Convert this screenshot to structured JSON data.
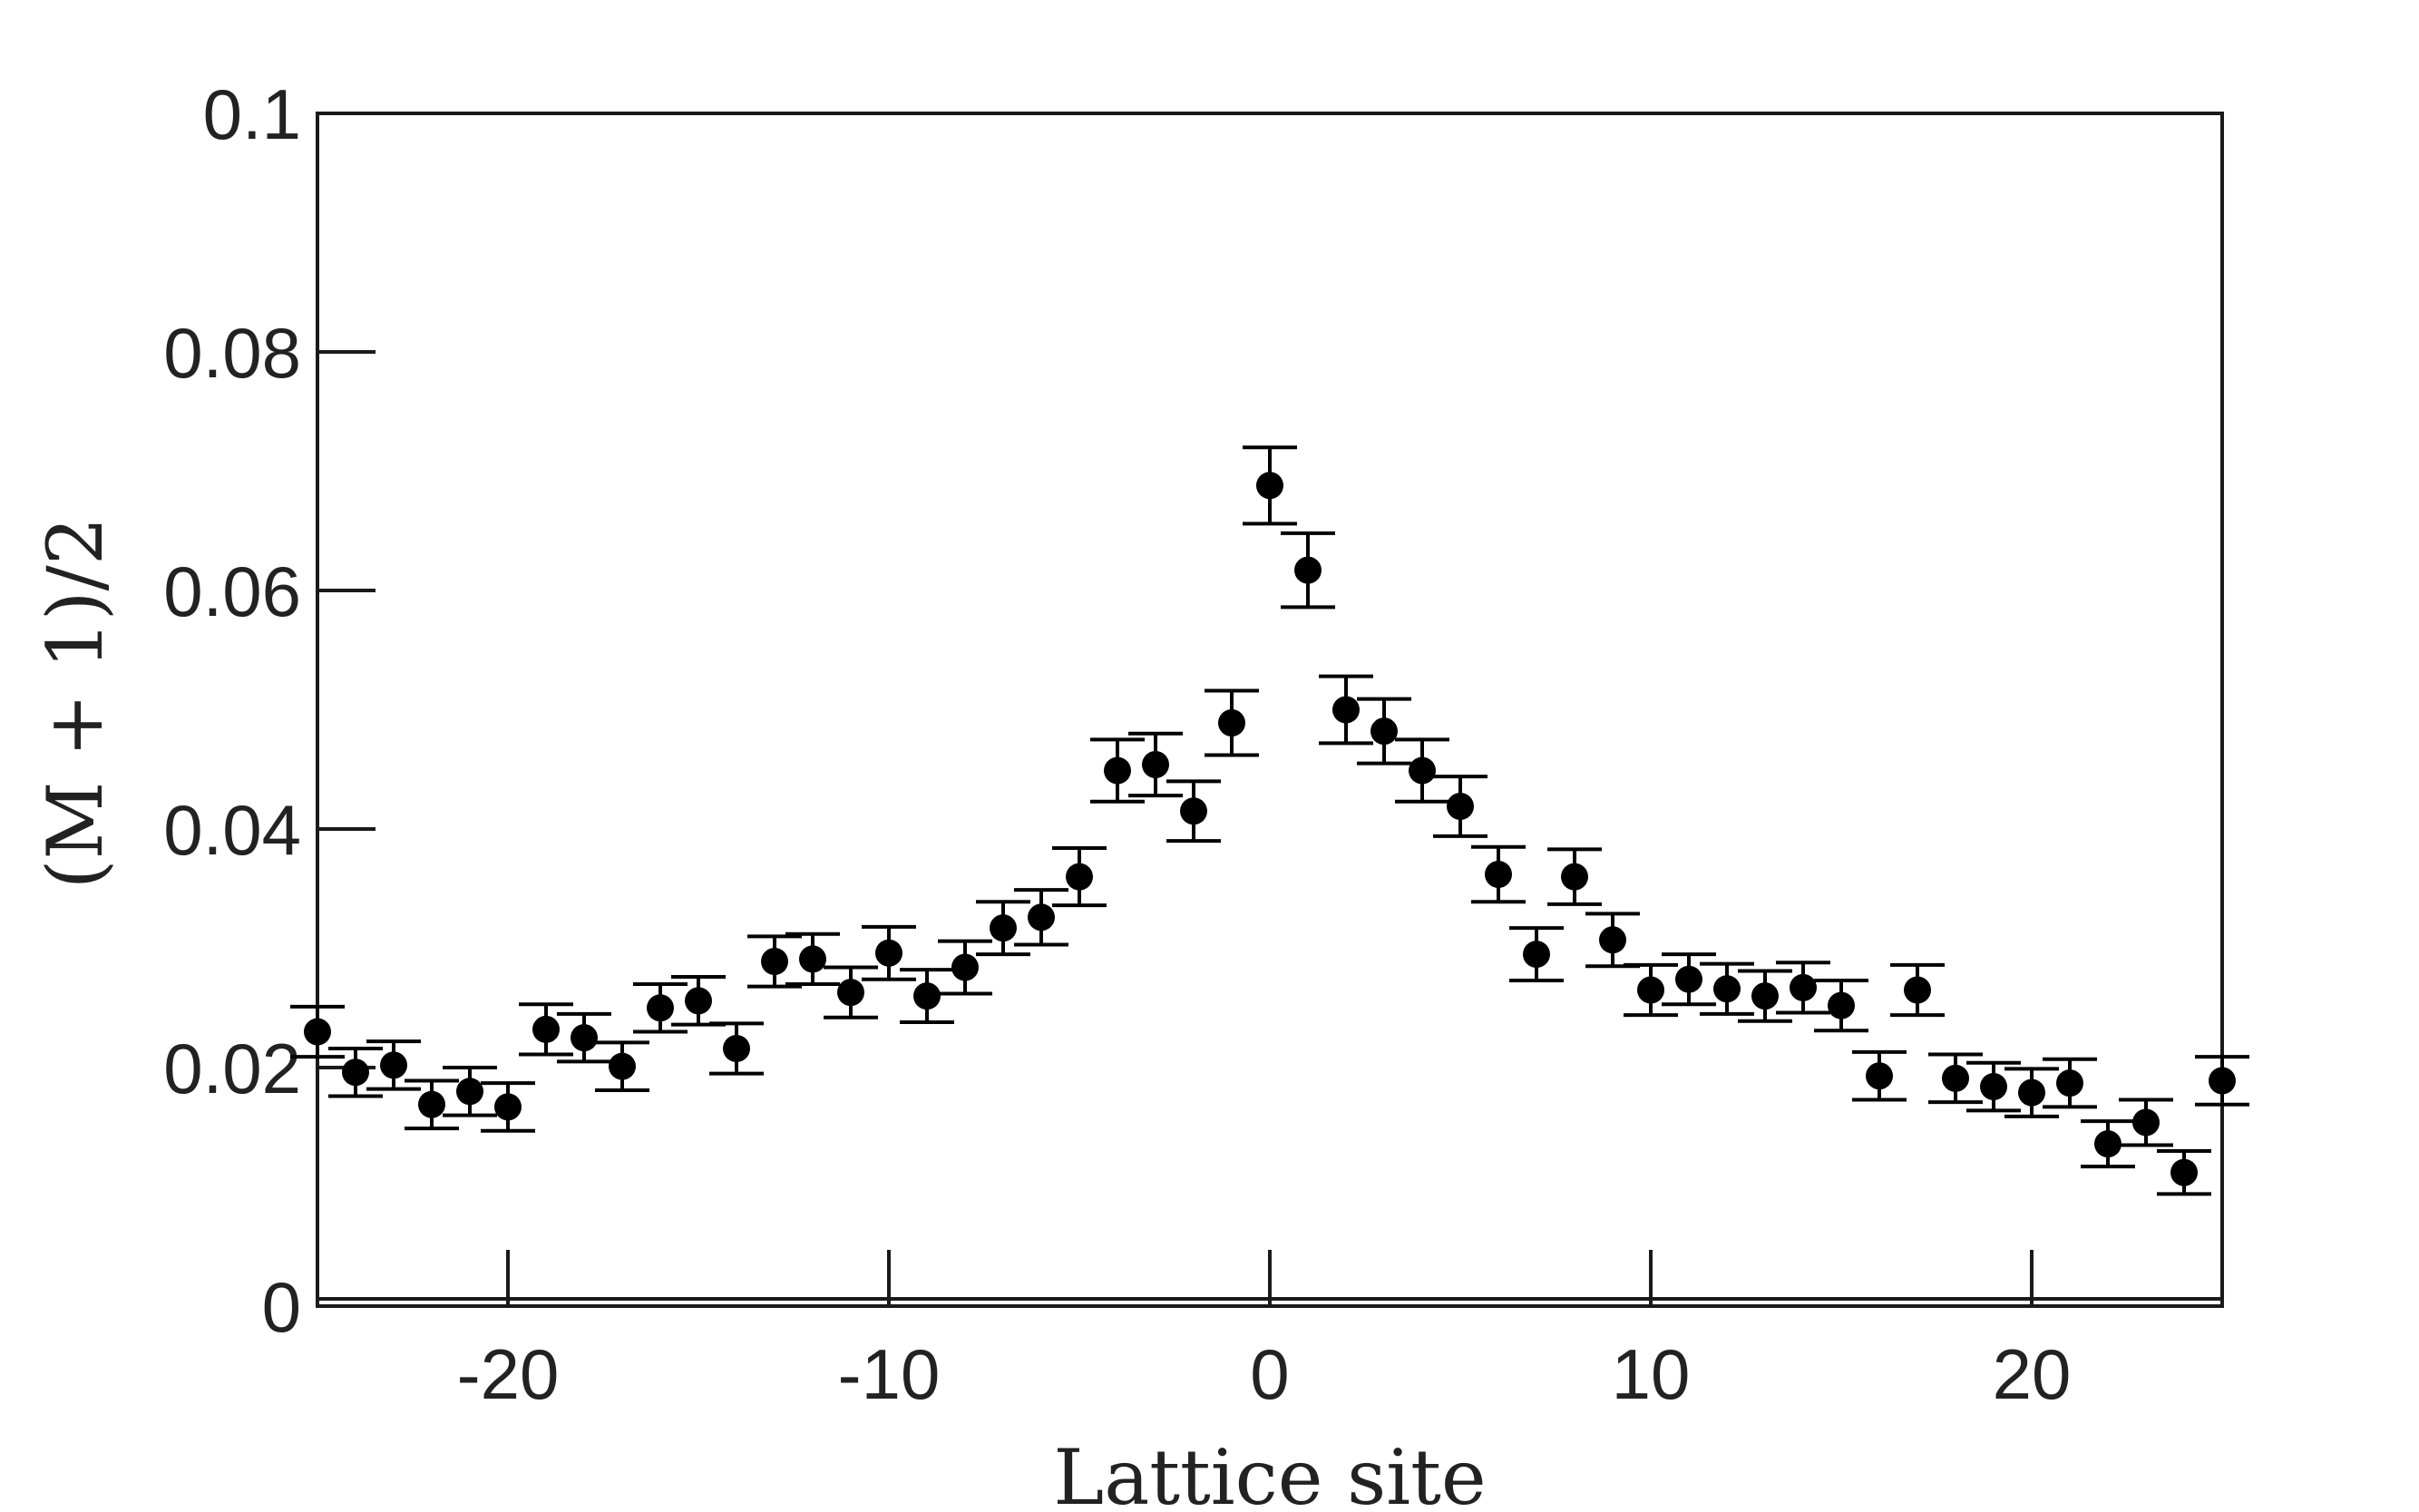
{
  "chart_data": {
    "type": "scatter",
    "title": "",
    "xlabel": "Lattice site",
    "ylabel": "(M + 1)/2",
    "xlim": [
      -25,
      25
    ],
    "ylim": [
      0,
      0.1
    ],
    "xticks": [
      -20,
      -10,
      0,
      10,
      20
    ],
    "xtick_labels": [
      "-20",
      "-10",
      "0",
      "10",
      "20"
    ],
    "yticks": [
      0,
      0.02,
      0.04,
      0.06,
      0.08,
      0.1
    ],
    "ytick_labels": [
      "0",
      "0.02",
      "0.04",
      "0.06",
      "0.08",
      "0.1"
    ],
    "grid": false,
    "legend": "none",
    "color": "#000000",
    "x": [
      -25,
      -24,
      -23,
      -22,
      -21,
      -20,
      -19,
      -18,
      -17,
      -16,
      -15,
      -14,
      -13,
      -12,
      -11,
      -10,
      -9,
      -8,
      -7,
      -6,
      -5,
      -4,
      -3,
      -2,
      -1,
      0,
      1,
      2,
      3,
      4,
      5,
      6,
      7,
      8,
      9,
      10,
      11,
      12,
      13,
      14,
      15,
      16,
      17,
      18,
      19,
      20,
      21,
      22,
      23,
      24,
      25
    ],
    "y": [
      0.023,
      0.0196,
      0.0202,
      0.0169,
      0.018,
      0.0167,
      0.0232,
      0.0225,
      0.0201,
      0.025,
      0.0256,
      0.0216,
      0.0289,
      0.0291,
      0.0263,
      0.0296,
      0.026,
      0.0284,
      0.0317,
      0.0326,
      0.036,
      0.0449,
      0.0454,
      0.0415,
      0.0489,
      0.0688,
      0.0617,
      0.05,
      0.0482,
      0.0449,
      0.0419,
      0.0362,
      0.0295,
      0.036,
      0.0307,
      0.0265,
      0.0274,
      0.0266,
      0.026,
      0.0267,
      0.0252,
      0.0193,
      0.0265,
      0.0191,
      0.0184,
      0.0179,
      0.0187,
      0.0136,
      0.0154,
      0.0112,
      0.0189
    ],
    "yerr": [
      0.0021,
      0.002,
      0.002,
      0.002,
      0.002,
      0.002,
      0.0021,
      0.002,
      0.002,
      0.002,
      0.002,
      0.0021,
      0.0021,
      0.0021,
      0.0021,
      0.0022,
      0.0022,
      0.0022,
      0.0022,
      0.0023,
      0.0024,
      0.0026,
      0.0026,
      0.0025,
      0.0027,
      0.0032,
      0.0031,
      0.0028,
      0.0027,
      0.0026,
      0.0025,
      0.0023,
      0.0022,
      0.0023,
      0.0022,
      0.0021,
      0.0021,
      0.0021,
      0.0021,
      0.0021,
      0.0021,
      0.002,
      0.0021,
      0.002,
      0.002,
      0.002,
      0.002,
      0.0019,
      0.0019,
      0.0018,
      0.002
    ]
  }
}
